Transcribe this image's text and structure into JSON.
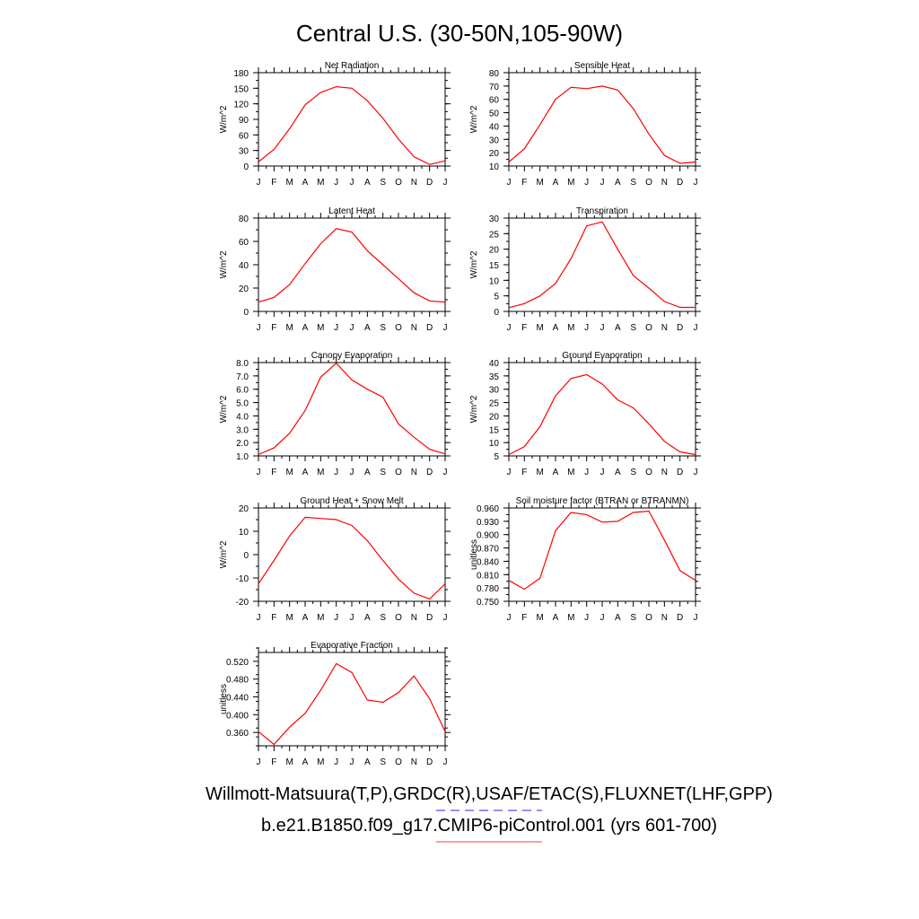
{
  "title": "Central U.S. (30-50N,105-90W)",
  "month_labels": [
    "J",
    "F",
    "M",
    "A",
    "M",
    "J",
    "J",
    "A",
    "S",
    "O",
    "N",
    "D",
    "J"
  ],
  "series_color": "#ff0000",
  "chart_data": [
    {
      "type": "line",
      "title": "Net Radiation",
      "ylabel": "W/m^2",
      "ylim": [
        0,
        180
      ],
      "yticks": [
        0,
        30,
        60,
        90,
        120,
        150,
        180
      ],
      "ytick_labels": [
        "0",
        "30",
        "60",
        "90",
        "120",
        "150",
        "180"
      ],
      "y_minor": 15,
      "values": [
        8,
        32,
        72,
        118,
        142,
        153,
        150,
        126,
        92,
        52,
        18,
        3,
        10
      ]
    },
    {
      "type": "line",
      "title": "Sensible Heat",
      "ylabel": "W/m^2",
      "ylim": [
        10,
        80
      ],
      "yticks": [
        10,
        20,
        30,
        40,
        50,
        60,
        70,
        80
      ],
      "ytick_labels": [
        "10",
        "20",
        "30",
        "40",
        "50",
        "60",
        "70",
        "80"
      ],
      "y_minor": 5,
      "values": [
        13,
        23,
        41,
        60,
        69,
        68,
        70,
        67,
        53,
        34,
        18,
        12,
        13
      ]
    },
    {
      "type": "line",
      "title": "Latent Heat",
      "ylabel": "W/m^2",
      "ylim": [
        0,
        80
      ],
      "yticks": [
        0,
        20,
        40,
        60,
        80
      ],
      "ytick_labels": [
        "0",
        "20",
        "40",
        "60",
        "80"
      ],
      "y_minor": 10,
      "values": [
        8,
        12,
        23,
        41,
        58,
        71,
        68,
        52,
        40,
        28,
        16,
        9,
        8
      ]
    },
    {
      "type": "line",
      "title": "Transpiration",
      "ylabel": "W/m^2",
      "ylim": [
        0,
        30
      ],
      "yticks": [
        0,
        5,
        10,
        15,
        20,
        25,
        30
      ],
      "ytick_labels": [
        "0",
        "5",
        "10",
        "15",
        "20",
        "25",
        "30"
      ],
      "y_minor": 2.5,
      "values": [
        1.2,
        2.5,
        5,
        9,
        17,
        27.5,
        28.8,
        20,
        11.5,
        7.5,
        3.2,
        1.3,
        1.3
      ]
    },
    {
      "type": "line",
      "title": "Canopy Evaporation",
      "ylabel": "W/m^2",
      "ylim": [
        1.0,
        8.0
      ],
      "yticks": [
        1.0,
        2.0,
        3.0,
        4.0,
        5.0,
        6.0,
        7.0,
        8.0
      ],
      "ytick_labels": [
        "1.0",
        "2.0",
        "3.0",
        "4.0",
        "5.0",
        "6.0",
        "7.0",
        "8.0"
      ],
      "y_minor": 0.5,
      "values": [
        1.1,
        1.6,
        2.7,
        4.4,
        6.9,
        7.95,
        6.7,
        6.0,
        5.4,
        3.4,
        2.4,
        1.5,
        1.15
      ]
    },
    {
      "type": "line",
      "title": "Ground Evaporation",
      "ylabel": "W/m^2",
      "ylim": [
        5,
        40
      ],
      "yticks": [
        5,
        10,
        15,
        20,
        25,
        30,
        35,
        40
      ],
      "ytick_labels": [
        "5",
        "10",
        "15",
        "20",
        "25",
        "30",
        "35",
        "40"
      ],
      "y_minor": 2.5,
      "values": [
        5.5,
        8.5,
        16,
        27.5,
        34,
        35.5,
        32,
        26,
        23,
        17,
        10.5,
        6.5,
        5.5
      ]
    },
    {
      "type": "line",
      "title": "Ground Heat + Snow Melt",
      "ylabel": "W/m^2",
      "ylim": [
        -20,
        20
      ],
      "yticks": [
        -20,
        -10,
        0,
        10,
        20
      ],
      "ytick_labels": [
        "-20",
        "-10",
        "0",
        "10",
        "20"
      ],
      "y_minor": 5,
      "values": [
        -12.5,
        -2.5,
        8,
        16,
        15.5,
        15,
        12.5,
        6,
        -2.5,
        -10.5,
        -16.5,
        -19,
        -12.5
      ]
    },
    {
      "type": "line",
      "title": "Soil moisture factor (BTRAN or BTRANMN)",
      "ylabel": "unitless",
      "ylim": [
        0.75,
        0.96
      ],
      "yticks": [
        0.75,
        0.78,
        0.81,
        0.84,
        0.87,
        0.9,
        0.93,
        0.96
      ],
      "ytick_labels": [
        "0.750",
        "0.780",
        "0.810",
        "0.840",
        "0.870",
        "0.900",
        "0.930",
        "0.960"
      ],
      "y_minor": 0.015,
      "values": [
        0.797,
        0.777,
        0.802,
        0.909,
        0.95,
        0.945,
        0.928,
        0.93,
        0.95,
        0.953,
        0.888,
        0.819,
        0.797
      ]
    },
    {
      "type": "line",
      "title": "Evaporative Fraction",
      "ylabel": "unitless",
      "ylim": [
        0.33,
        0.54
      ],
      "yticks": [
        0.36,
        0.4,
        0.44,
        0.48,
        0.52
      ],
      "ytick_labels": [
        "0.360",
        "0.400",
        "0.440",
        "0.480",
        "0.520"
      ],
      "y_minor": 0.02,
      "values": [
        0.362,
        0.333,
        0.372,
        0.403,
        0.455,
        0.515,
        0.495,
        0.433,
        0.428,
        0.45,
        0.487,
        0.436,
        0.362
      ]
    }
  ],
  "footer": {
    "obs_label": "Willmott-Matsuura(T,P),GRDC(R),USAF/ETAC(S),FLUXNET(LHF,GPP)",
    "obs_color": "#6f6ff0",
    "model_label": "b.e21.B1850.f09_g17.CMIP6-piControl.001 (yrs 601-700)",
    "model_color": "#ff8080"
  }
}
